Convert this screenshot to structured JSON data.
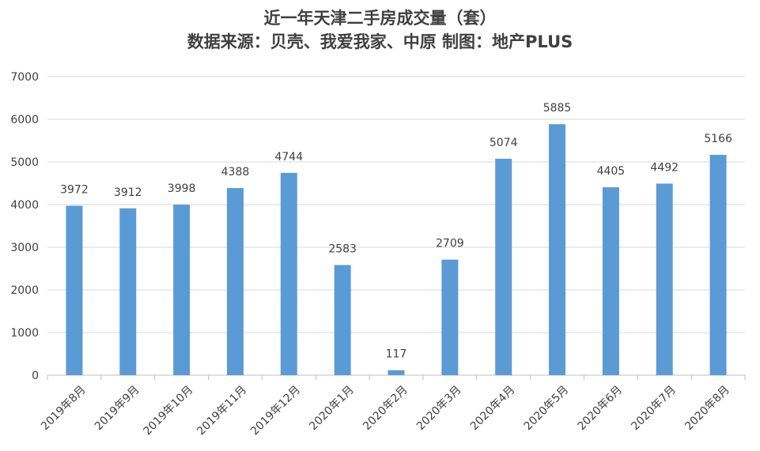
{
  "chart_data": {
    "type": "bar",
    "title": "近一年天津二手房成交量（套）",
    "subtitle": "数据来源：贝壳、我爱我家、中原 制图：地产PLUS",
    "xlabel": "",
    "ylabel": "",
    "categories": [
      "2019年8月",
      "2019年9月",
      "2019年10月",
      "2019年11月",
      "2019年12月",
      "2020年1月",
      "2020年2月",
      "2020年3月",
      "2020年4月",
      "2020年5月",
      "2020年6月",
      "2020年7月",
      "2020年8月"
    ],
    "values": [
      3972,
      3912,
      3998,
      4388,
      4744,
      2583,
      117,
      2709,
      5074,
      5885,
      4405,
      4492,
      5166
    ],
    "ylim": [
      0,
      7000
    ],
    "yticks": [
      0,
      1000,
      2000,
      3000,
      4000,
      5000,
      6000,
      7000
    ],
    "grid": true,
    "legend": "none",
    "bar_color": "#5B9BD5",
    "grid_color": "#D9D9D9",
    "text_color": "#404040"
  }
}
